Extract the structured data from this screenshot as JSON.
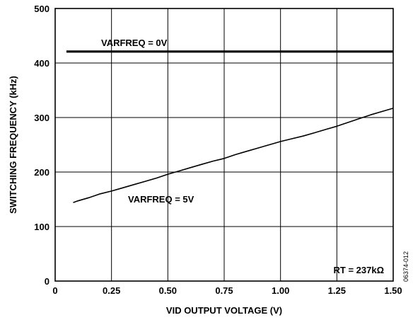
{
  "chart_data": {
    "type": "line",
    "xlabel": "VID OUTPUT VOLTAGE (V)",
    "ylabel": "SWITCHING FREQUENCY (kHz)",
    "xlim": [
      0,
      1.5
    ],
    "ylim": [
      0,
      500
    ],
    "x_ticks": [
      "0",
      "0.25",
      "0.50",
      "0.75",
      "1.00",
      "1.25",
      "1.50"
    ],
    "y_ticks": [
      "0",
      "100",
      "200",
      "300",
      "400",
      "500"
    ],
    "grid": true,
    "series": [
      {
        "name": "VARFREQ = 0V",
        "x": [
          0.05,
          0.25,
          0.5,
          0.75,
          1.0,
          1.25,
          1.5
        ],
        "y": [
          421,
          421,
          421,
          421,
          421,
          421,
          421
        ]
      },
      {
        "name": "VARFREQ = 5V",
        "x": [
          0.08,
          0.1,
          0.15,
          0.2,
          0.25,
          0.3,
          0.35,
          0.4,
          0.45,
          0.5,
          0.55,
          0.6,
          0.65,
          0.7,
          0.75,
          0.8,
          0.85,
          0.9,
          0.95,
          1.0,
          1.05,
          1.1,
          1.15,
          1.2,
          1.25,
          1.3,
          1.35,
          1.4,
          1.45,
          1.5
        ],
        "y": [
          144,
          147,
          153,
          160,
          165,
          171,
          177,
          183,
          189,
          196,
          202,
          208,
          214,
          220,
          225,
          232,
          238,
          244,
          250,
          256,
          261,
          266,
          272,
          278,
          284,
          291,
          298,
          305,
          311,
          317
        ]
      }
    ],
    "annotations": [
      "RT = 237kΩ"
    ],
    "figure_id": "06374-012"
  }
}
